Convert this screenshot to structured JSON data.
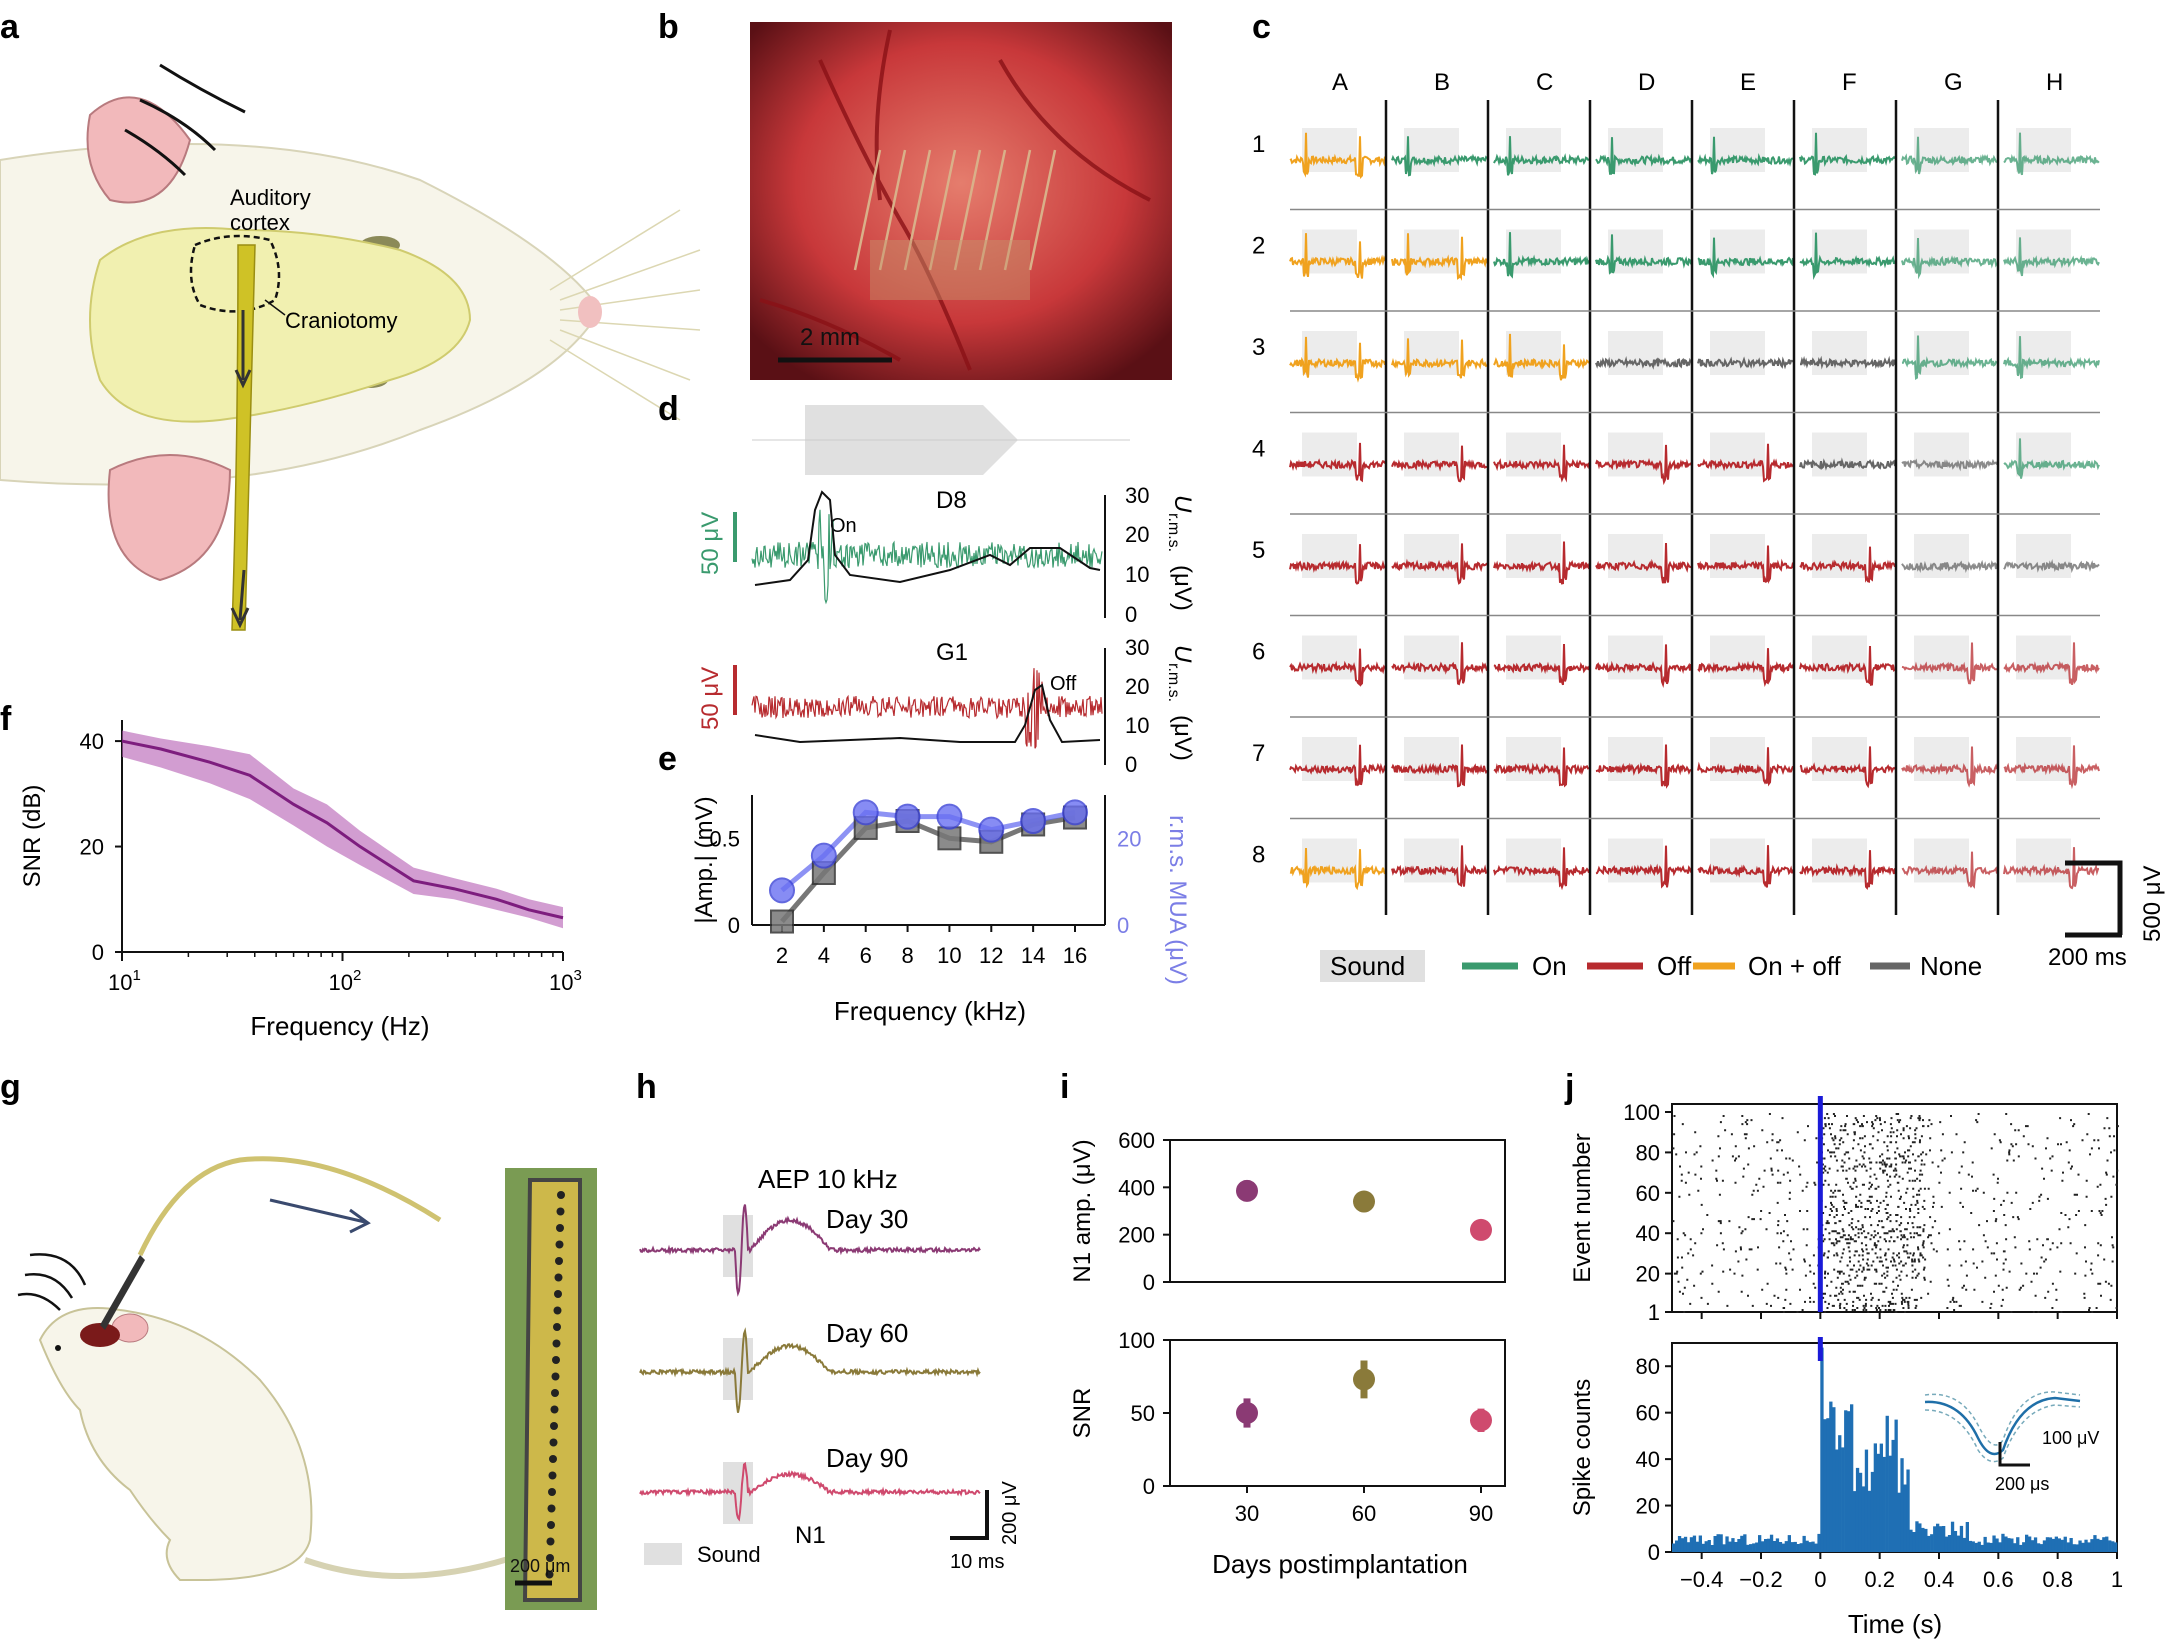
{
  "panel_labels": [
    "a",
    "b",
    "c",
    "d",
    "e",
    "f",
    "g",
    "h",
    "i",
    "j"
  ],
  "a": {
    "auditory": "Auditory",
    "cortex": "cortex",
    "craniotomy": "Craniotomy"
  },
  "b": {
    "scale": "2 mm"
  },
  "c": {
    "columns": [
      "A",
      "B",
      "C",
      "D",
      "E",
      "F",
      "G",
      "H"
    ],
    "rows": [
      "1",
      "2",
      "3",
      "4",
      "5",
      "6",
      "7",
      "8"
    ],
    "types": [
      "Y",
      "G",
      "G",
      "G",
      "G",
      "G",
      "G",
      "G",
      "Y",
      "Y",
      "G",
      "G",
      "G",
      "G",
      "G",
      "G",
      "Y",
      "Y",
      "Y",
      "N",
      "N",
      "N",
      "G",
      "G",
      "R",
      "R",
      "R",
      "R",
      "R",
      "N",
      "N",
      "G",
      "R",
      "R",
      "R",
      "R",
      "R",
      "R",
      "N",
      "N",
      "R",
      "R",
      "R",
      "R",
      "R",
      "R",
      "R",
      "R",
      "R",
      "R",
      "R",
      "R",
      "R",
      "R",
      "R",
      "R",
      "Y",
      "R",
      "R",
      "R",
      "R",
      "R",
      "R",
      "R"
    ],
    "colors": {
      "On": "#3a9a6e",
      "Off": "#b72b2f",
      "OnOff": "#f0a21f",
      "None": "#666666"
    },
    "legend": {
      "sound": "Sound",
      "on": "On",
      "off": "Off",
      "onoff": "On + off",
      "none": "None"
    },
    "scale_v": "500 μV",
    "scale_t": "200 ms"
  },
  "d": {
    "ch1": "D8",
    "ch2": "G1",
    "on": "On",
    "off": "Off",
    "scale": "50 μV",
    "axis_ticks": [
      "30",
      "20",
      "10",
      "0"
    ],
    "axis_label_U": "U",
    "axis_label_sub": "r.m.s.",
    "axis_label_unit": "(μV)"
  },
  "e": {
    "chart_data": {
      "type": "line",
      "x": [
        2,
        4,
        6,
        8,
        10,
        12,
        14,
        16
      ],
      "series": [
        {
          "name": "|Amp.| (mV)",
          "values": [
            0.02,
            0.3,
            0.56,
            0.6,
            0.5,
            0.48,
            0.58,
            0.62
          ]
        },
        {
          "name": "r.m.s. MUA (μV)",
          "values": [
            8,
            16,
            26,
            25,
            25,
            22,
            24,
            26
          ]
        }
      ],
      "xlabel": "Frequency (kHz)",
      "ylabel_left": "|Amp.| (mV)",
      "ylabel_right": "r.m.s. MUA (μV)",
      "xticks": [
        "2",
        "4",
        "6",
        "8",
        "10",
        "12",
        "14",
        "16"
      ],
      "yticks_left": [
        "0",
        "0.5"
      ],
      "yticks_right": [
        "0",
        "20"
      ],
      "ylim_left": [
        0,
        0.75
      ],
      "ylim_right": [
        0,
        30
      ]
    }
  },
  "f": {
    "chart_data": {
      "type": "area",
      "x": [
        10,
        15,
        25,
        38,
        60,
        85,
        120,
        210,
        320,
        500,
        700,
        1000
      ],
      "mean": [
        40,
        38.5,
        36,
        33.5,
        28,
        24.5,
        20,
        13.5,
        12,
        10,
        8,
        6.5
      ],
      "lower": [
        37,
        35,
        32,
        29,
        24,
        20,
        16.5,
        11,
        10,
        8,
        6.5,
        4.5
      ],
      "upper": [
        42,
        40.5,
        39,
        37.5,
        31,
        28,
        23,
        16,
        14,
        12,
        10,
        8.5
      ],
      "xlabel": "Frequency (Hz)",
      "ylabel": "SNR (dB)",
      "yticks": [
        "0",
        "20",
        "40"
      ],
      "xticks": [
        "10^1",
        "10^2",
        "10^3"
      ],
      "xticks_base": "10",
      "xticks_exp": [
        "1",
        "2",
        "3"
      ],
      "ylim": [
        0,
        44
      ],
      "xscale": "log"
    }
  },
  "g": {
    "scale": "200 μm"
  },
  "h": {
    "title": "AEP 10 kHz",
    "days": [
      "Day 30",
      "Day 60",
      "Day 90"
    ],
    "n1": "N1",
    "sound": "Sound",
    "scale_v": "200 μV",
    "scale_t": "10 ms"
  },
  "i": {
    "chart_data": [
      {
        "type": "scatter",
        "x": [
          "30",
          "60",
          "90"
        ],
        "values": [
          385,
          340,
          220
        ],
        "errors": [
          45,
          40,
          25
        ],
        "colors": [
          "#8b3a74",
          "#8a7a3a",
          "#cf4a6e"
        ],
        "ylabel": "N1 amp. (μV)",
        "yticks": [
          "0",
          "200",
          "400",
          "600"
        ],
        "ylim": [
          0,
          600
        ]
      },
      {
        "type": "scatter",
        "x": [
          "30",
          "60",
          "90"
        ],
        "values": [
          50,
          73,
          45
        ],
        "errors": [
          10,
          13,
          8
        ],
        "colors": [
          "#8b3a74",
          "#8a7a3a",
          "#cf4a6e"
        ],
        "ylabel": "SNR",
        "yticks": [
          "0",
          "50",
          "100"
        ],
        "ylim": [
          0,
          100
        ],
        "xlabel": "Days postimplantation"
      }
    ]
  },
  "j": {
    "chart_data": [
      {
        "type": "scatter",
        "ylabel": "Event number",
        "yticks": [
          "1",
          "20",
          "40",
          "60",
          "80",
          "100"
        ],
        "ylim": [
          1,
          100
        ],
        "xlim": [
          -0.5,
          1.0
        ]
      },
      {
        "type": "bar",
        "ylabel": "Spike counts",
        "xlabel": "Time (s)",
        "yticks": [
          "0",
          "20",
          "40",
          "60",
          "80"
        ],
        "ylim": [
          0,
          90
        ],
        "xticks": [
          "−0.4",
          "−0.2",
          "0",
          "0.2",
          "0.4",
          "0.6",
          "0.8",
          "1"
        ],
        "xlim": [
          -0.5,
          1.0
        ]
      }
    ],
    "inset_scale_v": "100 μV",
    "inset_scale_t": "200 μs"
  }
}
